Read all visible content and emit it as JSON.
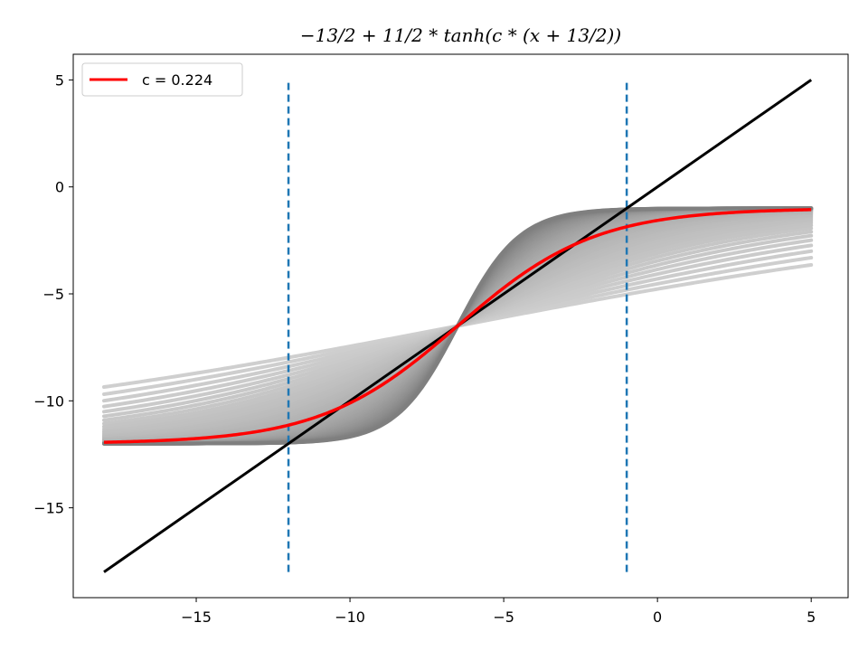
{
  "chart_data": {
    "type": "line",
    "title": "−13/2 + 11/2 * tanh(c * (x + 13/2))",
    "xlabel": "",
    "ylabel": "",
    "xlim": [
      -19,
      6.2
    ],
    "ylim": [
      -19.2,
      6.2
    ],
    "x_ticks": [
      -15,
      -10,
      -5,
      0,
      5
    ],
    "x_tick_labels": [
      "−15",
      "−10",
      "−5",
      "0",
      "5"
    ],
    "y_ticks": [
      5,
      0,
      -5,
      -10,
      -15
    ],
    "y_tick_labels": [
      "5",
      "0",
      "−5",
      "−10",
      "−15"
    ],
    "grid": false,
    "legend": {
      "position": "top-left",
      "entries": [
        {
          "label": "c = 0.224",
          "color": "#ff0000"
        }
      ]
    },
    "x_range": [
      -18,
      5
    ],
    "band": {
      "c_min": 0.05,
      "c_max": 0.5,
      "color_light": "#cfcfcf",
      "color_dark": "#7f7f7f"
    },
    "series": [
      {
        "name": "c = 0.224",
        "function": "-13/2 + 11/2*tanh(c*(x+13/2))",
        "c": 0.224,
        "color": "#ff0000"
      },
      {
        "function": "y = x",
        "color": "#000000",
        "x": [
          -18,
          5
        ],
        "y": [
          -18,
          5
        ]
      }
    ],
    "vlines": [
      {
        "x": -12,
        "y": [
          -18,
          5
        ],
        "color": "#1f77b4",
        "style": "dashed"
      },
      {
        "x": -1,
        "y": [
          -18,
          5
        ],
        "color": "#1f77b4",
        "style": "dashed"
      }
    ]
  }
}
